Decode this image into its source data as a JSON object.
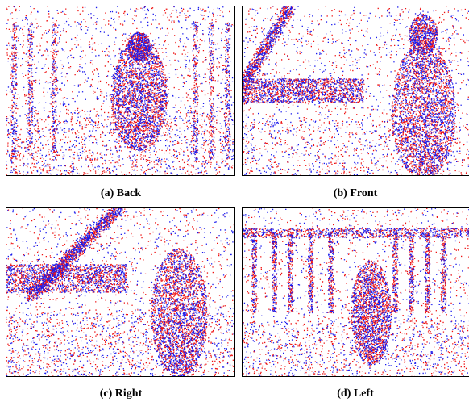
{
  "figure": {
    "panels": [
      {
        "caption": "(a) Back"
      },
      {
        "caption": "(b) Front"
      },
      {
        "caption": "(c) Right"
      },
      {
        "caption": "(d) Left"
      }
    ]
  }
}
